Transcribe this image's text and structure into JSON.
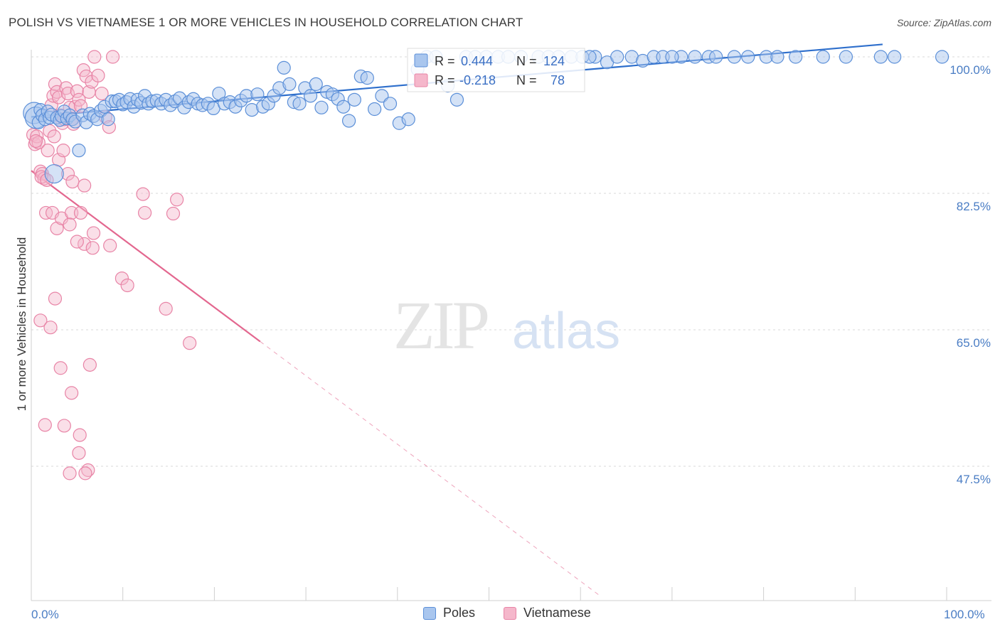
{
  "header": {
    "title": "POLISH VS VIETNAMESE 1 OR MORE VEHICLES IN HOUSEHOLD CORRELATION CHART",
    "source": "Source: ZipAtlas.com"
  },
  "watermark": {
    "zip": "ZIP",
    "atlas": "atlas"
  },
  "colors": {
    "poles_fill": "#a9c6ee",
    "poles_stroke": "#5b8fd8",
    "poles_line": "#2e6fcc",
    "viet_fill": "#f5b7cb",
    "viet_stroke": "#e884a6",
    "viet_line": "#e3678f",
    "tick_color": "#4a7dc4",
    "grid": "#d9d9d9"
  },
  "legend": {
    "rows": [
      {
        "r_label": "R =",
        "r_value": "0.444",
        "n_label": "N =",
        "n_value": "124"
      },
      {
        "r_label": "R =",
        "r_value": "-0.218",
        "n_label": "N =",
        "n_value": "78"
      }
    ]
  },
  "bottom_legend": {
    "poles": "Poles",
    "vietnamese": "Vietnamese"
  },
  "chart_data": {
    "type": "scatter",
    "title": "POLISH VS VIETNAMESE 1 OR MORE VEHICLES IN HOUSEHOLD CORRELATION CHART",
    "xlabel": "",
    "ylabel": "1 or more Vehicles in Household",
    "xlim": [
      0,
      100
    ],
    "ylim": [
      30,
      100
    ],
    "x_tick_labels": [
      "0.0%",
      "100.0%"
    ],
    "y_tick_labels": [
      "100.0%",
      "82.5%",
      "65.0%",
      "47.5%"
    ],
    "y_ticks": [
      100.0,
      82.5,
      65.0,
      47.5
    ],
    "grid": true,
    "legend_position": "top-center",
    "series": [
      {
        "name": "Poles",
        "r": 0.444,
        "n": 124,
        "trend": {
          "x": [
            0,
            93
          ],
          "y": [
            92.3,
            101.6
          ]
        },
        "points": [
          [
            0.3,
            92.8
          ],
          [
            0.5,
            92.2
          ],
          [
            0.8,
            91.6
          ],
          [
            1.0,
            93.2
          ],
          [
            1.2,
            92.5
          ],
          [
            1.5,
            92.0
          ],
          [
            1.8,
            93.0
          ],
          [
            2.0,
            92.2
          ],
          [
            2.2,
            92.6
          ],
          [
            2.5,
            85.0
          ],
          [
            2.8,
            92.2
          ],
          [
            3.1,
            91.9
          ],
          [
            3.3,
            92.4
          ],
          [
            3.6,
            93.0
          ],
          [
            3.9,
            92.1
          ],
          [
            4.2,
            92.5
          ],
          [
            4.5,
            92.0
          ],
          [
            4.8,
            91.7
          ],
          [
            5.2,
            88.0
          ],
          [
            5.6,
            92.5
          ],
          [
            6.0,
            91.6
          ],
          [
            6.4,
            92.7
          ],
          [
            6.8,
            92.4
          ],
          [
            7.2,
            92.0
          ],
          [
            7.6,
            93.1
          ],
          [
            8.0,
            93.6
          ],
          [
            8.4,
            92.0
          ],
          [
            8.8,
            94.3
          ],
          [
            9.2,
            94.3
          ],
          [
            9.6,
            94.5
          ],
          [
            10.0,
            93.9
          ],
          [
            10.4,
            94.2
          ],
          [
            10.8,
            94.6
          ],
          [
            11.2,
            93.6
          ],
          [
            11.6,
            94.5
          ],
          [
            12.0,
            94.1
          ],
          [
            12.4,
            95.0
          ],
          [
            12.8,
            94.0
          ],
          [
            13.2,
            94.3
          ],
          [
            13.7,
            94.4
          ],
          [
            14.2,
            94.0
          ],
          [
            14.7,
            94.5
          ],
          [
            15.2,
            93.8
          ],
          [
            15.7,
            94.3
          ],
          [
            16.2,
            94.7
          ],
          [
            16.7,
            93.5
          ],
          [
            17.2,
            94.2
          ],
          [
            17.7,
            94.6
          ],
          [
            18.2,
            94.0
          ],
          [
            18.7,
            93.8
          ],
          [
            19.3,
            94.0
          ],
          [
            19.9,
            93.4
          ],
          [
            20.5,
            95.3
          ],
          [
            21.1,
            94.0
          ],
          [
            21.7,
            94.2
          ],
          [
            22.3,
            93.6
          ],
          [
            22.9,
            94.4
          ],
          [
            23.5,
            95.0
          ],
          [
            24.1,
            93.2
          ],
          [
            24.7,
            95.2
          ],
          [
            25.3,
            93.6
          ],
          [
            25.9,
            94.0
          ],
          [
            26.5,
            95.0
          ],
          [
            27.1,
            96.0
          ],
          [
            27.6,
            98.6
          ],
          [
            28.2,
            96.5
          ],
          [
            28.7,
            94.2
          ],
          [
            29.3,
            94.0
          ],
          [
            29.9,
            96.0
          ],
          [
            30.5,
            95.0
          ],
          [
            31.1,
            96.5
          ],
          [
            31.7,
            93.5
          ],
          [
            32.3,
            95.5
          ],
          [
            32.9,
            95.2
          ],
          [
            33.5,
            94.6
          ],
          [
            34.1,
            93.6
          ],
          [
            34.7,
            91.8
          ],
          [
            35.3,
            94.5
          ],
          [
            36.0,
            97.5
          ],
          [
            36.7,
            97.3
          ],
          [
            37.5,
            93.3
          ],
          [
            38.3,
            95.0
          ],
          [
            39.2,
            94.0
          ],
          [
            40.2,
            91.5
          ],
          [
            41.2,
            92.0
          ],
          [
            42.2,
            98.4
          ],
          [
            43.2,
            100.0
          ],
          [
            44.2,
            100.0
          ],
          [
            45.5,
            96.3
          ],
          [
            46.5,
            94.5
          ],
          [
            47.5,
            100.0
          ],
          [
            48.5,
            100.0
          ],
          [
            49.7,
            100.0
          ],
          [
            51.0,
            100.0
          ],
          [
            52.1,
            100.0
          ],
          [
            53.5,
            100.0
          ],
          [
            55.4,
            100.0
          ],
          [
            56.5,
            100.0
          ],
          [
            57.6,
            100.0
          ],
          [
            59.0,
            100.0
          ],
          [
            60.2,
            100.0
          ],
          [
            61.6,
            100.0
          ],
          [
            62.9,
            99.3
          ],
          [
            64.0,
            100.0
          ],
          [
            65.6,
            100.0
          ],
          [
            66.8,
            99.5
          ],
          [
            68.0,
            100.0
          ],
          [
            69.0,
            100.0
          ],
          [
            71.0,
            100.0
          ],
          [
            72.5,
            100.0
          ],
          [
            74.0,
            100.0
          ],
          [
            74.8,
            100.0
          ],
          [
            76.8,
            100.0
          ],
          [
            78.3,
            100.0
          ],
          [
            80.3,
            100.0
          ],
          [
            81.5,
            100.0
          ],
          [
            83.5,
            100.0
          ],
          [
            86.5,
            100.0
          ],
          [
            89.0,
            100.0
          ],
          [
            92.8,
            100.0
          ],
          [
            94.3,
            100.0
          ],
          [
            99.5,
            100.0
          ],
          [
            61.0,
            100.0
          ],
          [
            70.0,
            100.0
          ]
        ]
      },
      {
        "name": "Vietnamese",
        "r": -0.218,
        "n": 78,
        "trend": {
          "x": [
            0,
            25
          ],
          "y": [
            85.4,
            63.5
          ]
        },
        "trend_dashed": {
          "x": [
            25,
            62
          ],
          "y": [
            63.5,
            31.0
          ]
        },
        "points": [
          [
            0.2,
            90.0
          ],
          [
            0.4,
            88.8
          ],
          [
            0.6,
            89.8
          ],
          [
            0.8,
            89.0
          ],
          [
            1.0,
            85.3
          ],
          [
            1.2,
            85.0
          ],
          [
            1.4,
            84.4
          ],
          [
            1.6,
            80.0
          ],
          [
            1.8,
            88.0
          ],
          [
            2.0,
            90.5
          ],
          [
            2.2,
            93.8
          ],
          [
            2.4,
            95.0
          ],
          [
            2.6,
            96.5
          ],
          [
            2.8,
            95.5
          ],
          [
            3.0,
            94.8
          ],
          [
            3.2,
            92.5
          ],
          [
            3.4,
            91.5
          ],
          [
            3.6,
            92.0
          ],
          [
            3.8,
            96.0
          ],
          [
            4.0,
            95.3
          ],
          [
            4.2,
            93.5
          ],
          [
            4.4,
            92.0
          ],
          [
            4.6,
            91.4
          ],
          [
            4.8,
            93.6
          ],
          [
            5.0,
            95.6
          ],
          [
            5.2,
            94.5
          ],
          [
            5.4,
            93.7
          ],
          [
            5.7,
            98.3
          ],
          [
            6.0,
            97.5
          ],
          [
            6.3,
            95.5
          ],
          [
            6.6,
            96.8
          ],
          [
            6.9,
            100.0
          ],
          [
            7.3,
            97.6
          ],
          [
            7.7,
            95.3
          ],
          [
            8.1,
            92.3
          ],
          [
            8.5,
            91.0
          ],
          [
            8.9,
            100.0
          ],
          [
            2.5,
            89.8
          ],
          [
            3.0,
            86.8
          ],
          [
            3.5,
            88.0
          ],
          [
            4.0,
            85.0
          ],
          [
            4.5,
            84.0
          ],
          [
            0.5,
            89.2
          ],
          [
            1.1,
            84.6
          ],
          [
            1.7,
            84.2
          ],
          [
            2.3,
            80.0
          ],
          [
            2.8,
            78.0
          ],
          [
            3.3,
            79.3
          ],
          [
            4.4,
            80.0
          ],
          [
            5.4,
            80.0
          ],
          [
            5.8,
            83.5
          ],
          [
            4.2,
            78.5
          ],
          [
            5.8,
            76.0
          ],
          [
            5.0,
            76.3
          ],
          [
            6.7,
            75.5
          ],
          [
            8.6,
            75.8
          ],
          [
            6.8,
            77.4
          ],
          [
            9.9,
            71.6
          ],
          [
            10.5,
            70.7
          ],
          [
            12.2,
            82.4
          ],
          [
            12.4,
            80.0
          ],
          [
            14.7,
            67.7
          ],
          [
            15.9,
            81.7
          ],
          [
            15.5,
            79.9
          ],
          [
            17.3,
            63.3
          ],
          [
            6.4,
            60.5
          ],
          [
            2.6,
            69.0
          ],
          [
            1.0,
            66.2
          ],
          [
            2.1,
            65.3
          ],
          [
            3.2,
            60.1
          ],
          [
            4.4,
            56.9
          ],
          [
            1.5,
            52.8
          ],
          [
            3.6,
            52.7
          ],
          [
            5.3,
            51.5
          ],
          [
            5.2,
            49.2
          ],
          [
            6.2,
            47.0
          ],
          [
            4.2,
            46.6
          ],
          [
            5.9,
            46.6
          ]
        ]
      }
    ]
  }
}
